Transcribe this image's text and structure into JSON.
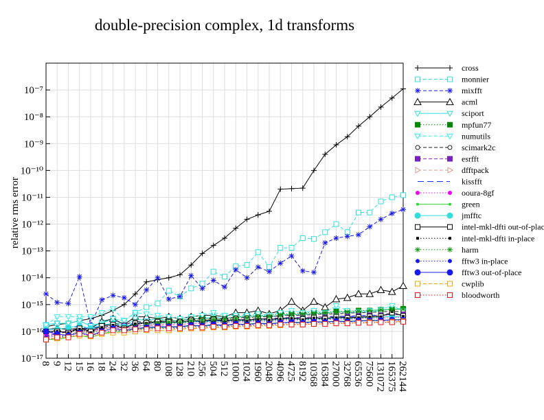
{
  "chart_data": {
    "type": "line",
    "title": "double-precision complex, 1d transforms",
    "y_label": "relative rms error",
    "log_y": true,
    "grid": true,
    "legend": "right",
    "categories": [
      "8",
      "9",
      "12",
      "15",
      "16",
      "18",
      "24",
      "32",
      "36",
      "64",
      "80",
      "108",
      "128",
      "210",
      "256",
      "504",
      "512",
      "1000",
      "1024",
      "1960",
      "2048",
      "4096",
      "4725",
      "8192",
      "10368",
      "16384",
      "27000",
      "32768",
      "65536",
      "75600",
      "131072",
      "165375",
      "262144"
    ],
    "ylim": [
      1e-17,
      1e-06
    ],
    "yticks": [
      {
        "value": 1e-17,
        "label": "10⁻¹⁷"
      },
      {
        "value": 1e-16,
        "label": "10⁻¹⁶"
      },
      {
        "value": 1e-15,
        "label": "10⁻¹⁵"
      },
      {
        "value": 1e-14,
        "label": "10⁻¹⁴"
      },
      {
        "value": 1e-13,
        "label": "10⁻¹³"
      },
      {
        "value": 1e-12,
        "label": "10⁻¹²"
      },
      {
        "value": 1e-11,
        "label": "10⁻¹¹"
      },
      {
        "value": 1e-10,
        "label": "10⁻¹⁰"
      },
      {
        "value": 1e-09,
        "label": "10⁻⁹"
      },
      {
        "value": 1e-08,
        "label": "10⁻⁸"
      },
      {
        "value": 1e-07,
        "label": "10⁻⁷"
      }
    ],
    "series": [
      {
        "name": "cross",
        "color": "#000000",
        "dash": "solid",
        "marker": "plus",
        "values": [
          1.5e-16,
          1.8e-16,
          2e-16,
          2.5e-16,
          3e-16,
          4e-16,
          6e-16,
          1e-15,
          2.5e-15,
          7e-15,
          8.5e-15,
          1e-14,
          1.3e-14,
          3e-14,
          8e-14,
          1.6e-13,
          3e-13,
          7e-13,
          1.5e-12,
          2.2e-12,
          3e-12,
          2e-11,
          2.1e-11,
          2.2e-11,
          1e-10,
          4e-10,
          9e-10,
          1.8e-09,
          4.5e-09,
          1e-08,
          2.3e-08,
          5e-08,
          1.1e-07
        ]
      },
      {
        "name": "monnier",
        "color": "#33dddd",
        "dash": "dashed",
        "marker": "square-open",
        "values": [
          1.7e-16,
          2e-16,
          2e-16,
          2.5e-16,
          1.6e-16,
          2.2e-16,
          3e-16,
          2.5e-16,
          5e-16,
          8e-16,
          1.1e-15,
          3.3e-15,
          2e-15,
          4e-15,
          6e-15,
          1.7e-14,
          1.1e-14,
          2.7e-14,
          3e-14,
          9e-14,
          2.5e-14,
          1.3e-13,
          1.3e-13,
          3e-13,
          2.8e-13,
          5e-13,
          1e-12,
          5e-13,
          2.7e-12,
          2.7e-12,
          7e-12,
          1e-11,
          1.2e-11
        ]
      },
      {
        "name": "mixfft",
        "color": "#1a1aee",
        "dash": "dashed",
        "marker": "star",
        "values": [
          2.5e-15,
          1.2e-15,
          1.1e-15,
          1.1e-14,
          1.7e-16,
          1.5e-15,
          2.2e-15,
          1.8e-15,
          1e-15,
          3.5e-15,
          1e-14,
          1.6e-15,
          2e-15,
          1.2e-14,
          4e-15,
          8e-15,
          4.5e-15,
          2e-14,
          1e-14,
          2.5e-14,
          1.7e-14,
          3.5e-14,
          6.5e-14,
          1.8e-14,
          1.6e-14,
          2e-13,
          3e-13,
          3.5e-13,
          4e-13,
          8e-13,
          1.5e-12,
          2.5e-12,
          3.5e-12
        ]
      },
      {
        "name": "acml",
        "color": "#000000",
        "dash": "solid",
        "marker": "triangle-open",
        "values": [
          1.2e-16,
          1.3e-16,
          1.2e-16,
          1.3e-16,
          1.3e-16,
          2.3e-16,
          3e-16,
          1.8e-16,
          3.5e-16,
          3.5e-16,
          3e-16,
          3.5e-16,
          3e-16,
          3.5e-16,
          4e-16,
          4e-16,
          3.5e-16,
          5e-16,
          5e-16,
          6e-16,
          4.5e-16,
          6e-16,
          1.3e-15,
          6e-16,
          1.3e-15,
          8e-16,
          1.6e-15,
          1.8e-15,
          2.5e-15,
          2.5e-15,
          3.5e-15,
          3e-15,
          5e-15
        ]
      },
      {
        "name": "sciport",
        "color": "#33dddd",
        "dash": "solid",
        "marker": "triangle-down-open",
        "values": [
          1.8e-16,
          2e-16,
          2e-16,
          2.5e-16,
          1.6e-16,
          2e-16,
          3e-16,
          1.5e-16,
          3e-16,
          2.5e-16,
          3e-16,
          2.5e-16,
          2.5e-16,
          3e-16,
          3e-16,
          3.5e-16,
          3e-16,
          3.5e-16,
          3.5e-16,
          4e-16,
          3.5e-16,
          4e-16,
          4.5e-16,
          4e-16,
          5e-16,
          4.5e-16,
          6e-16,
          5e-16,
          5e-16,
          5.5e-16,
          6e-16,
          7e-16,
          6.5e-16
        ]
      },
      {
        "name": "mpfun77",
        "color": "#008800",
        "dash": "dotted",
        "marker": "square",
        "values": [
          5e-17,
          5.5e-17,
          7e-17,
          1e-16,
          8e-17,
          1.2e-16,
          1.5e-16,
          1.4e-16,
          2e-16,
          2e-16,
          2.5e-16,
          2.5e-16,
          2.5e-16,
          3e-16,
          3e-16,
          3e-16,
          3e-16,
          3.5e-16,
          3.5e-16,
          4e-16,
          4e-16,
          4.5e-16,
          4.5e-16,
          5e-16,
          5e-16,
          5e-16,
          5.5e-16,
          5.5e-16,
          6e-16,
          6e-16,
          6.5e-16,
          6.5e-16,
          7e-16
        ]
      },
      {
        "name": "numutils",
        "color": "#33eeee",
        "dash": "dashed",
        "marker": "triangle-down-open",
        "values": [
          1.7e-16,
          3.5e-16,
          3.5e-16,
          3.5e-16,
          3.5e-16,
          5e-16,
          7e-16,
          2.5e-16,
          5e-16,
          4.5e-16,
          4e-16,
          3.5e-16,
          3e-16,
          3.5e-16,
          4e-16,
          5e-16,
          4e-16,
          4e-16,
          4e-16,
          4.5e-16,
          4e-16,
          5e-16,
          6e-16,
          5e-16,
          6e-16,
          5e-16,
          9e-16,
          6e-16,
          5.5e-16,
          6e-16,
          6.5e-16,
          9e-16,
          6e-16
        ]
      },
      {
        "name": "scimark2c",
        "color": "#222222",
        "dash": "dashed",
        "marker": "circle-open",
        "values": [
          7e-17,
          8e-17,
          1e-16,
          1.3e-16,
          1.2e-16,
          1.6e-16,
          2e-16,
          1.8e-16,
          2.3e-16,
          2.3e-16,
          2.5e-16,
          2.5e-16,
          2.5e-16,
          3e-16,
          2.8e-16,
          3e-16,
          3e-16,
          3.3e-16,
          3.3e-16,
          3.5e-16,
          3.5e-16,
          3.8e-16,
          4e-16,
          4e-16,
          4.2e-16,
          4.5e-16,
          4.5e-16,
          4.8e-16,
          5e-16,
          5e-16,
          5.5e-16,
          5.5e-16,
          5.5e-16
        ]
      },
      {
        "name": "esrfft",
        "color": "#7722bb",
        "dash": "dashed",
        "marker": "square",
        "values": [
          6e-17,
          9e-17,
          1e-16,
          1.2e-16,
          1.1e-16,
          1.4e-16,
          1.7e-16,
          1.6e-16,
          1.8e-16,
          2e-16,
          2e-16,
          2.2e-16,
          2.2e-16,
          2.4e-16,
          2.4e-16,
          2.6e-16,
          2.6e-16,
          2.8e-16,
          2.8e-16,
          3e-16,
          3e-16,
          3.2e-16,
          3.3e-16,
          3.3e-16,
          3.5e-16,
          3.5e-16,
          3.7e-16,
          3.7e-16,
          3.9e-16,
          4e-16,
          4e-16,
          4.2e-16,
          4.3e-16
        ]
      },
      {
        "name": "dfftpack",
        "color": "#dd9988",
        "dash": "dashed",
        "marker": "triangle-right-open",
        "values": [
          6e-17,
          7e-17,
          8e-17,
          1e-16,
          9e-17,
          1.2e-16,
          1.4e-16,
          1.3e-16,
          1.6e-16,
          1.6e-16,
          1.7e-16,
          1.8e-16,
          1.8e-16,
          2e-16,
          2e-16,
          2.2e-16,
          2.2e-16,
          2.4e-16,
          2.4e-16,
          2.6e-16,
          2.6e-16,
          2.8e-16,
          2.9e-16,
          2.9e-16,
          3e-16,
          3e-16,
          3.2e-16,
          3.2e-16,
          3.4e-16,
          3.4e-16,
          3.5e-16,
          3.6e-16,
          3.7e-16
        ]
      },
      {
        "name": "kissfft",
        "color": "#1133ee",
        "dash": "longdash",
        "marker": "none",
        "values": [
          1.2e-16,
          1.2e-16,
          1.4e-16,
          1.5e-16,
          1.2e-16,
          1.7e-16,
          2e-16,
          1.5e-16,
          2.2e-16,
          2e-16,
          2.2e-16,
          2.2e-16,
          2e-16,
          2.5e-16,
          2.3e-16,
          2.6e-16,
          2.4e-16,
          2.8e-16,
          2.6e-16,
          3e-16,
          2.8e-16,
          3e-16,
          3.2e-16,
          3e-16,
          3.5e-16,
          3.2e-16,
          3.8e-16,
          3.4e-16,
          3.8e-16,
          4e-16,
          4e-16,
          4.3e-16,
          4.2e-16
        ]
      },
      {
        "name": "ooura-8gf",
        "color": "#ee00ee",
        "dash": "dotted",
        "marker": "circle",
        "values": [
          8e-17,
          9e-17,
          1e-16,
          1.2e-16,
          1e-16,
          1.3e-16,
          1.5e-16,
          1.3e-16,
          1.6e-16,
          1.7e-16,
          1.8e-16,
          1.8e-16,
          1.8e-16,
          2e-16,
          2e-16,
          2.2e-16,
          2.1e-16,
          2.3e-16,
          2.2e-16,
          2.5e-16,
          2.3e-16,
          2.5e-16,
          2.7e-16,
          2.5e-16,
          2.8e-16,
          2.6e-16,
          3e-16,
          2.7e-16,
          3e-16,
          3.1e-16,
          3.1e-16,
          3.3e-16,
          3.3e-16
        ]
      },
      {
        "name": "green",
        "color": "#22dd22",
        "dash": "solid",
        "marker": "dot",
        "values": [
          5e-17,
          5e-17,
          6e-17,
          7e-17,
          6e-17,
          8e-17,
          1e-16,
          1e-16,
          1.2e-16,
          1.3e-16,
          1.4e-16,
          1.4e-16,
          1.5e-16,
          1.6e-16,
          1.6e-16,
          1.7e-16,
          1.7e-16,
          1.8e-16,
          1.9e-16,
          2e-16,
          2e-16,
          2.1e-16,
          2.2e-16,
          2.2e-16,
          2.3e-16,
          2.3e-16,
          2.4e-16,
          2.4e-16,
          2.5e-16,
          2.6e-16,
          2.6e-16,
          2.7e-16,
          2.8e-16
        ]
      },
      {
        "name": "jmfftc",
        "color": "#33dddd",
        "dash": "solid",
        "marker": "circle-big",
        "values": [
          1.2e-16,
          1.2e-16,
          1.4e-16,
          1.6e-16,
          1.3e-16,
          1.7e-16,
          2e-16,
          1.5e-16,
          2e-16,
          2e-16,
          2.2e-16,
          2.2e-16,
          2e-16,
          2.4e-16,
          2.2e-16,
          2.5e-16,
          2.3e-16,
          2.6e-16,
          2.4e-16,
          2.8e-16,
          2.5e-16,
          2.8e-16,
          3e-16,
          2.7e-16,
          3e-16,
          2.8e-16,
          3.3e-16,
          3e-16,
          3.2e-16,
          3.4e-16,
          3.4e-16,
          3.6e-16,
          3.6e-16
        ]
      },
      {
        "name": "intel-mkl-dfti out-of-place",
        "color": "#000000",
        "dash": "solid",
        "marker": "square-open",
        "values": [
          1e-16,
          1e-16,
          9e-17,
          1.3e-16,
          1e-16,
          1.6e-16,
          1.8e-16,
          1.3e-16,
          2e-16,
          2.1e-16,
          2.3e-16,
          2.3e-16,
          2.2e-16,
          2.6e-16,
          2.4e-16,
          2.8e-16,
          2.5e-16,
          2.8e-16,
          2.6e-16,
          3e-16,
          2.8e-16,
          3e-16,
          3.2e-16,
          2.9e-16,
          3.3e-16,
          3e-16,
          3.5e-16,
          3.2e-16,
          3.4e-16,
          3.6e-16,
          3.7e-16,
          5e-16,
          3.8e-16
        ]
      },
      {
        "name": "intel-mkl-dfti in-place",
        "color": "#000000",
        "dash": "dotted",
        "marker": "square-small",
        "values": [
          9e-17,
          1e-16,
          9e-17,
          1.2e-16,
          9e-17,
          1.4e-16,
          1.7e-16,
          1.3e-16,
          1.9e-16,
          2e-16,
          2.1e-16,
          2.1e-16,
          2e-16,
          2.4e-16,
          2.2e-16,
          2.6e-16,
          2.3e-16,
          2.6e-16,
          2.4e-16,
          2.8e-16,
          2.6e-16,
          2.8e-16,
          3e-16,
          2.7e-16,
          3.1e-16,
          2.8e-16,
          3.2e-16,
          3e-16,
          3.2e-16,
          3.4e-16,
          3.5e-16,
          5.5e-16,
          3.6e-16
        ]
      },
      {
        "name": "harm",
        "color": "#119911",
        "dash": "dotted",
        "marker": "star",
        "values": [
          5e-17,
          6e-17,
          7e-17,
          9e-17,
          7e-17,
          1e-16,
          1.3e-16,
          1.2e-16,
          1.5e-16,
          1.7e-16,
          2e-16,
          2.2e-16,
          2.2e-16,
          2.5e-16,
          2.6e-16,
          2.8e-16,
          2.8e-16,
          3e-16,
          3.2e-16,
          3.5e-16,
          3.6e-16,
          4e-16,
          4.2e-16,
          4.4e-16,
          4.6e-16,
          4.8e-16,
          5e-16,
          5.3e-16,
          5.6e-16,
          6e-16,
          6.3e-16,
          6.6e-16,
          7e-16
        ]
      },
      {
        "name": "fftw3 in-place",
        "color": "#1a1aee",
        "dash": "dotted",
        "marker": "circle",
        "values": [
          6e-17,
          7e-17,
          7e-17,
          9e-17,
          7e-17,
          9e-17,
          1.1e-16,
          1e-16,
          1.2e-16,
          1.3e-16,
          1.4e-16,
          1.4e-16,
          1.4e-16,
          1.6e-16,
          1.5e-16,
          1.7e-16,
          1.6e-16,
          1.8e-16,
          1.7e-16,
          1.9e-16,
          1.8e-16,
          2e-16,
          2.1e-16,
          2e-16,
          2.2e-16,
          2.1e-16,
          2.3e-16,
          2.2e-16,
          2.4e-16,
          2.5e-16,
          2.5e-16,
          2.6e-16,
          2.6e-16
        ]
      },
      {
        "name": "fftw3 out-of-place",
        "color": "#1a1aee",
        "dash": "solid",
        "marker": "circle-big",
        "values": [
          1e-16,
          8e-17,
          7e-17,
          9e-17,
          7e-17,
          1e-16,
          1.3e-16,
          1.1e-16,
          1.3e-16,
          1.4e-16,
          1.5e-16,
          1.5e-16,
          1.5e-16,
          1.7e-16,
          1.6e-16,
          1.8e-16,
          1.7e-16,
          1.9e-16,
          1.8e-16,
          2e-16,
          1.9e-16,
          2.1e-16,
          2.2e-16,
          2.1e-16,
          2.3e-16,
          2.2e-16,
          2.4e-16,
          2.3e-16,
          2.5e-16,
          2.5e-16,
          2.6e-16,
          2.7e-16,
          2.7e-16
        ]
      },
      {
        "name": "cwplib",
        "color": "#eeaa00",
        "dash": "dashed",
        "marker": "square-open",
        "values": [
          5e-17,
          5.5e-17,
          6e-17,
          7e-17,
          6.5e-17,
          8e-17,
          9e-17,
          9e-17,
          1e-16,
          1.1e-16,
          1.1e-16,
          1.1e-16,
          1.2e-16,
          1.3e-16,
          1.3e-16,
          1.4e-16,
          1.4e-16,
          1.5e-16,
          1.5e-16,
          1.6e-16,
          1.6e-16,
          1.7e-16,
          1.8e-16,
          1.8e-16,
          1.9e-16,
          1.9e-16,
          2e-16,
          2e-16,
          2.1e-16,
          2.2e-16,
          2.2e-16,
          2.3e-16,
          2.4e-16
        ]
      },
      {
        "name": "bloodworth",
        "color": "#ee1111",
        "dash": "dotted",
        "marker": "square-open",
        "values": [
          5e-17,
          6e-17,
          6e-17,
          8e-17,
          7e-17,
          9e-17,
          1.1e-16,
          1.1e-16,
          1.2e-16,
          1.2e-16,
          1.3e-16,
          1.3e-16,
          1.3e-16,
          1.4e-16,
          1.4e-16,
          1.5e-16,
          1.5e-16,
          1.6e-16,
          1.6e-16,
          1.7e-16,
          1.7e-16,
          1.8e-16,
          1.8e-16,
          1.8e-16,
          1.9e-16,
          1.9e-16,
          2e-16,
          2e-16,
          2.1e-16,
          2.1e-16,
          2.2e-16,
          2.2e-16,
          2.3e-16
        ]
      }
    ]
  }
}
